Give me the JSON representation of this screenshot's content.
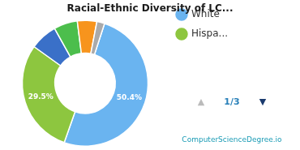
{
  "chart_data": {
    "type": "doughnut",
    "title": "Racial-Ethnic Diversity of LC...",
    "categories": [
      "White",
      "Hispa...",
      null,
      null,
      null,
      null
    ],
    "values": [
      50.4,
      29.5,
      7.0,
      6.1,
      5.0,
      2.0
    ],
    "colors": [
      "#6ab4f0",
      "#8dc63f",
      "#3a70c8",
      "#4cbe4c",
      "#f7941d",
      "#aaaaaa"
    ],
    "data_labels": true,
    "value_labels": [
      "50.4%",
      "29.5%",
      null,
      null,
      null,
      null
    ],
    "legend": "right",
    "annotations": [
      {
        "text": "▲",
        "color": "#bbbbbb"
      },
      {
        "text": "1/3",
        "color": "#2980b9"
      },
      {
        "text": "▼",
        "color": "#1a3a6e"
      },
      {
        "text": "ComputerScienceDegree.io",
        "color": "#1a9bb5"
      }
    ]
  }
}
